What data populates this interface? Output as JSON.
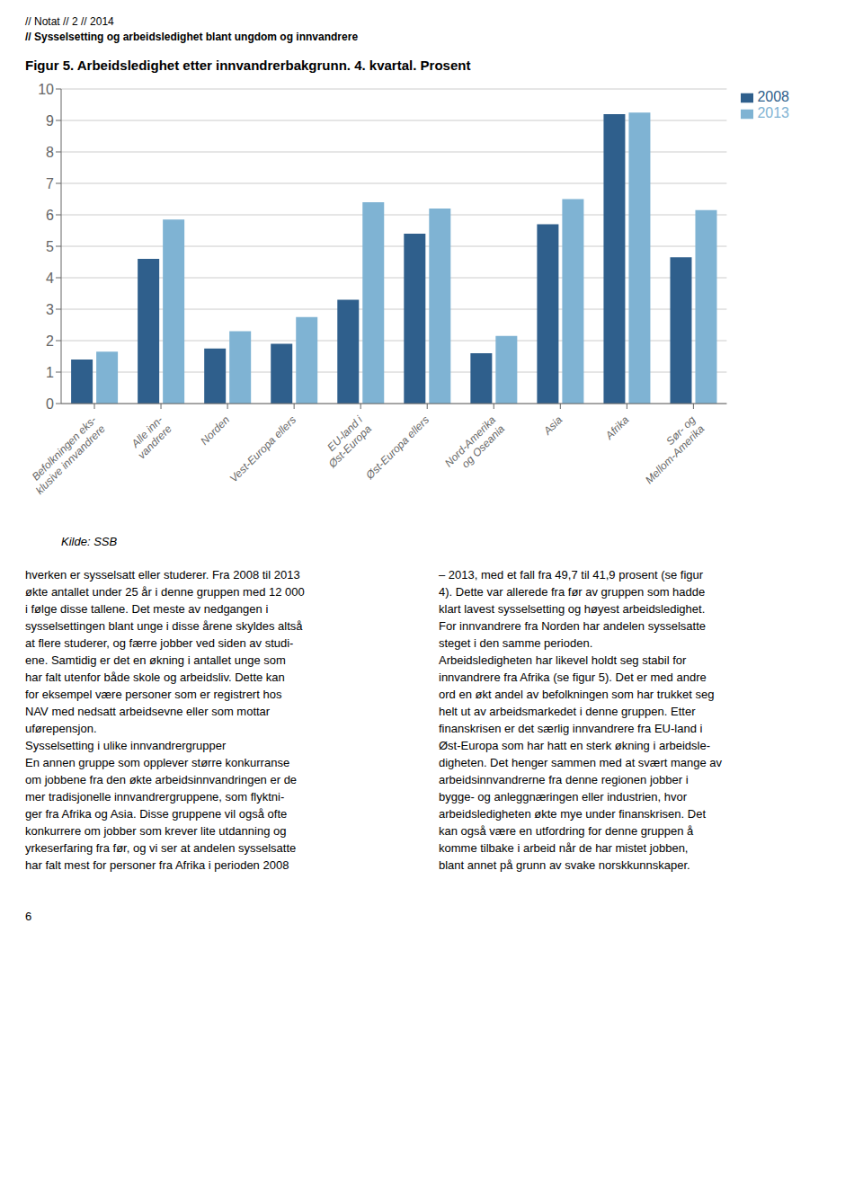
{
  "chart_data": {
    "type": "bar",
    "title": "Figur 5. Arbeidsledighet etter innvandrerbakgrunn. 4. kvartal. Prosent",
    "categories": [
      "Befolkningen eks-\nklusive innvandrere",
      "Alle inn-\nvandrere",
      "Norden",
      "Vest-Europa ellers",
      "EU-land i\nØst-Europa",
      "Øst-Europa ellers",
      "Nord-Amerika\nog Oseania",
      "Asia",
      "Afrika",
      "Sør- og\nMellom-Amerika"
    ],
    "series": [
      {
        "name": "2008",
        "color": "#2F5F8C",
        "values": [
          1.4,
          4.6,
          1.75,
          1.9,
          3.3,
          5.4,
          1.6,
          5.7,
          9.2,
          4.65
        ]
      },
      {
        "name": "2013",
        "color": "#7FB3D3",
        "values": [
          1.65,
          5.85,
          2.3,
          2.75,
          6.4,
          6.2,
          2.15,
          6.5,
          9.25,
          6.15
        ]
      }
    ],
    "ylim": [
      0,
      10
    ],
    "yticks": [
      0,
      1,
      2,
      3,
      4,
      5,
      6,
      7,
      8,
      9,
      10
    ],
    "grid": true,
    "legend": "upper right",
    "annotations": [
      "// Notat // 2 // 2014",
      "// Sysselsetting og arbeidsledighet blant ungdom og innvandrere",
      "Kilde: SSB",
      "hverken er sysselsatt eller studerer. Fra 2008 til 2013",
      "økte antallet under 25 år i denne gruppen med 12 000",
      "i følge disse tallene. Det meste av nedgangen i",
      "sysselsettingen blant unge i disse årene skyldes altså",
      "at flere studerer, og færre jobber ved siden av studi-",
      "ene. Samtidig er det en økning i antallet unge som",
      "har falt utenfor både skole og arbeidsliv. Dette kan",
      "for eksempel være personer som er registrert hos",
      "NAV med nedsatt arbeidsevne eller som mottar",
      "uførepensjon.",
      "Sysselsetting i ulike innvandrergrupper",
      "En annen gruppe som opplever større konkurranse",
      "om jobbene fra den økte arbeidsinnvandringen er de",
      "mer tradisjonelle innvandrergruppene, som flyktni-",
      "ger fra Afrika og Asia. Disse gruppene vil også ofte",
      "konkurrere om jobber som krever lite utdanning og",
      "yrkeserfaring fra før, og vi ser at andelen sysselsatte",
      "har falt mest for personer fra Afrika i perioden 2008",
      "– 2013, med et fall fra 49,7 til 41,9 prosent (se figur",
      "4). Dette var allerede fra før av gruppen som hadde",
      "klart lavest sysselsetting og høyest arbeidsledighet.",
      "For innvandrere fra Norden har andelen sysselsatte",
      "steget i den samme perioden.",
      "Arbeidsledigheten har likevel holdt seg stabil for",
      "innvandrere fra Afrika (se figur 5). Det er med andre",
      "ord en økt andel av befolkningen som har trukket seg",
      "helt ut av arbeidsmarkedet i denne gruppen. Etter",
      "finanskrisen er det særlig innvandrere fra EU-land i",
      "Øst-Europa som har hatt en sterk økning i arbeidsle-",
      "digheten. Det henger sammen med at svært mange av",
      "arbeidsinnvandrerne fra denne regionen jobber i",
      "bygge- og anleggnæringen eller industrien, hvor",
      "arbeidsledigheten økte mye under finanskrisen. Det",
      "kan også være en utfordring for denne gruppen å",
      "komme tilbake i arbeid når de har mistet jobben,",
      "blant annet på grunn av svake norskkunnskaper.",
      "6"
    ]
  }
}
